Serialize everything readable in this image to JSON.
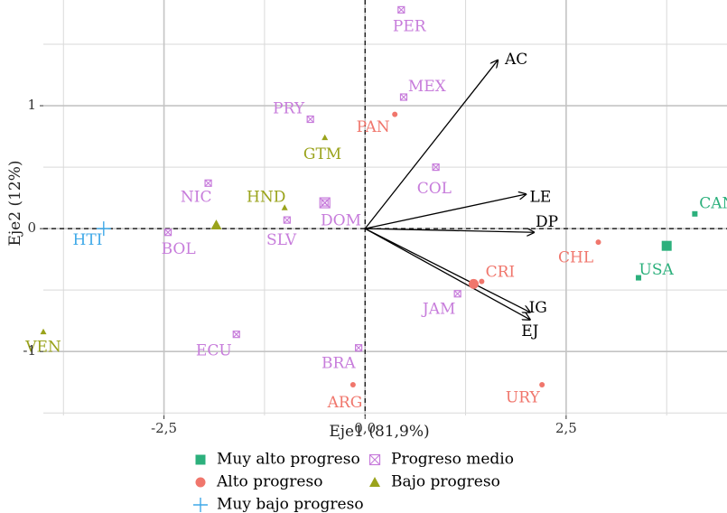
{
  "chart_data": {
    "type": "scatter",
    "subtype": "pca-biplot",
    "xlabel": "Eje1 (81,9%)",
    "ylabel": "Eje2 (12%)",
    "xlim": [
      -4.0,
      4.5
    ],
    "ylim": [
      -1.52,
      1.86
    ],
    "x_ticks": [
      {
        "v": -2.5,
        "label": "-2,5"
      },
      {
        "v": 0.0,
        "label": "0,0"
      },
      {
        "v": 2.5,
        "label": "2,5"
      }
    ],
    "y_ticks": [
      {
        "v": -1,
        "label": "-1"
      },
      {
        "v": 0,
        "label": "0"
      },
      {
        "v": 1,
        "label": "1"
      }
    ],
    "grid": true,
    "reference_lines": {
      "x": 0,
      "y": 0,
      "style": "dashed"
    },
    "legend_position": "bottom",
    "groups": [
      {
        "key": "muy_alto",
        "name": "Muy alto progreso",
        "shape": "square",
        "color": "#2cb07c"
      },
      {
        "key": "alto",
        "name": "Alto progreso",
        "shape": "circle",
        "color": "#f0766c"
      },
      {
        "key": "medio",
        "name": "Progreso medio",
        "shape": "boxx",
        "color": "#c77cdb"
      },
      {
        "key": "bajo",
        "name": "Bajo progreso",
        "shape": "triangle",
        "color": "#9aa31b"
      },
      {
        "key": "muy_bajo",
        "name": "Muy bajo progreso",
        "shape": "plus",
        "color": "#3fa9e8"
      }
    ],
    "points": [
      {
        "label": "CAN",
        "group": "muy_alto",
        "x": 4.1,
        "y": 0.12,
        "lx": 4.38,
        "ly": 0.2
      },
      {
        "label": "USA",
        "group": "muy_alto",
        "x": 3.4,
        "y": -0.4,
        "lx": 3.62,
        "ly": -0.34
      },
      {
        "label": "CHL",
        "group": "alto",
        "x": 2.9,
        "y": -0.11,
        "lx": 2.62,
        "ly": -0.24
      },
      {
        "label": "CRI",
        "group": "alto",
        "x": 1.45,
        "y": -0.43,
        "lx": 1.68,
        "ly": -0.36
      },
      {
        "label": "URY",
        "group": "alto",
        "x": 2.2,
        "y": -1.27,
        "lx": 1.96,
        "ly": -1.38
      },
      {
        "label": "ARG",
        "group": "alto",
        "x": -0.15,
        "y": -1.27,
        "lx": -0.25,
        "ly": -1.42
      },
      {
        "label": "PAN",
        "group": "alto",
        "x": 0.37,
        "y": 0.93,
        "lx": 0.1,
        "ly": 0.82
      },
      {
        "label": "PER",
        "group": "medio",
        "x": 0.45,
        "y": 1.78,
        "lx": 0.55,
        "ly": 1.64
      },
      {
        "label": "MEX",
        "group": "medio",
        "x": 0.48,
        "y": 1.07,
        "lx": 0.77,
        "ly": 1.15
      },
      {
        "label": "PRY",
        "group": "medio",
        "x": -0.68,
        "y": 0.89,
        "lx": -0.95,
        "ly": 0.97
      },
      {
        "label": "COL",
        "group": "medio",
        "x": 0.88,
        "y": 0.5,
        "lx": 0.86,
        "ly": 0.32
      },
      {
        "label": "NIC",
        "group": "medio",
        "x": -1.95,
        "y": 0.37,
        "lx": -2.1,
        "ly": 0.25
      },
      {
        "label": "DOM",
        "group": "medio",
        "x": -0.5,
        "y": 0.21,
        "lx": -0.3,
        "ly": 0.06
      },
      {
        "label": "SLV",
        "group": "medio",
        "x": -0.97,
        "y": 0.07,
        "lx": -1.04,
        "ly": -0.1
      },
      {
        "label": "BOL",
        "group": "medio",
        "x": -2.45,
        "y": -0.03,
        "lx": -2.32,
        "ly": -0.17
      },
      {
        "label": "JAM",
        "group": "medio",
        "x": 1.15,
        "y": -0.53,
        "lx": 0.92,
        "ly": -0.66
      },
      {
        "label": "ECU",
        "group": "medio",
        "x": -1.6,
        "y": -0.86,
        "lx": -1.88,
        "ly": -1.0
      },
      {
        "label": "BRA",
        "group": "medio",
        "x": -0.08,
        "y": -0.97,
        "lx": -0.33,
        "ly": -1.1
      },
      {
        "label": "GTM",
        "group": "bajo",
        "x": -0.5,
        "y": 0.74,
        "lx": -0.53,
        "ly": 0.6
      },
      {
        "label": "HND",
        "group": "bajo",
        "x": -1.0,
        "y": 0.17,
        "lx": -1.23,
        "ly": 0.25
      },
      {
        "label": "VEN",
        "group": "bajo",
        "x": -4.0,
        "y": -0.84,
        "lx": -4.0,
        "ly": -0.97
      },
      {
        "label": "HTI",
        "group": "muy_bajo",
        "x": -3.25,
        "y": 0.0,
        "lx": -3.45,
        "ly": -0.1
      }
    ],
    "group_means": [
      {
        "group": "medio",
        "x": -0.5,
        "y": 0.21
      },
      {
        "group": "bajo",
        "x": -1.85,
        "y": 0.03
      },
      {
        "group": "alto",
        "x": 1.35,
        "y": -0.45
      },
      {
        "group": "muy_alto",
        "x": 3.75,
        "y": -0.14
      }
    ],
    "vectors": [
      {
        "label": "AC",
        "x": 1.65,
        "y": 1.37,
        "lx": 1.88,
        "ly": 1.37
      },
      {
        "label": "LE",
        "x": 2.0,
        "y": 0.28,
        "lx": 2.18,
        "ly": 0.25
      },
      {
        "label": "DP",
        "x": 2.1,
        "y": -0.03,
        "lx": 2.26,
        "ly": 0.05
      },
      {
        "label": "IG",
        "x": 2.05,
        "y": -0.68,
        "lx": 2.15,
        "ly": -0.65
      },
      {
        "label": "EJ",
        "x": 2.05,
        "y": -0.74,
        "lx": 2.05,
        "ly": -0.84
      }
    ]
  }
}
